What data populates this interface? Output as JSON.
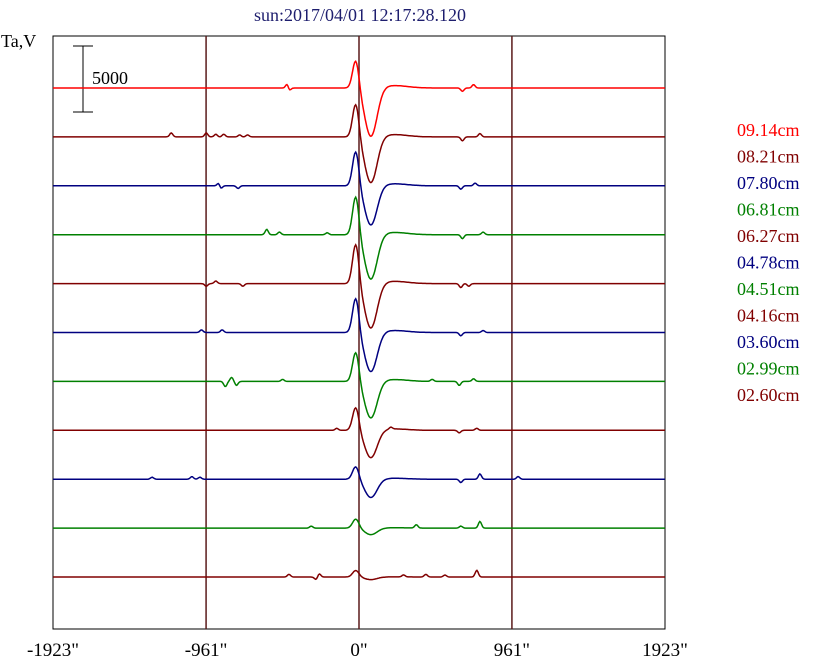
{
  "chart_data": {
    "type": "line",
    "title": "sun:2017/04/01 12:17:28.120",
    "ylabel": "Ta,V",
    "scale_bar_label": "5000",
    "x_ticks": [
      "-1923\"",
      "-961\"",
      "0\"",
      "961\"",
      "1923\""
    ],
    "x_tick_values": [
      -1923,
      -961,
      0,
      961,
      1923
    ],
    "xlim": [
      -1923,
      1923
    ],
    "vertical_grid_at": [
      -961,
      0,
      961
    ],
    "series": [
      {
        "name": "09.14cm",
        "color": "#ff0000",
        "pos_amp": 2200,
        "neg_amp": 3700,
        "features": [
          [
            -450,
            400
          ],
          [
            -440,
            -300
          ],
          [
            650,
            -250
          ],
          [
            720,
            250
          ]
        ]
      },
      {
        "name": "08.21cm",
        "color": "#800000",
        "pos_amp": 2600,
        "neg_amp": 3500,
        "features": [
          [
            -1180,
            300
          ],
          [
            -960,
            300
          ],
          [
            -900,
            200
          ],
          [
            -850,
            200
          ],
          [
            -750,
            150
          ],
          [
            -700,
            150
          ],
          [
            650,
            -300
          ],
          [
            760,
            250
          ]
        ]
      },
      {
        "name": "07.80cm",
        "color": "#000080",
        "pos_amp": 2700,
        "neg_amp": 3000,
        "features": [
          [
            -870,
            -300
          ],
          [
            -880,
            300
          ],
          [
            -760,
            -200
          ],
          [
            640,
            -250
          ],
          [
            730,
            200
          ]
        ]
      },
      {
        "name": "06.81cm",
        "color": "#008000",
        "pos_amp": 3000,
        "neg_amp": 3400,
        "features": [
          [
            -580,
            400
          ],
          [
            -500,
            200
          ],
          [
            -200,
            150
          ],
          [
            650,
            -300
          ],
          [
            780,
            200
          ]
        ]
      },
      {
        "name": "06.27cm",
        "color": "#800000",
        "pos_amp": 3100,
        "neg_amp": 3400,
        "features": [
          [
            -960,
            -200
          ],
          [
            -900,
            200
          ],
          [
            -730,
            -200
          ],
          [
            640,
            -300
          ],
          [
            690,
            -200
          ]
        ]
      },
      {
        "name": "04.78cm",
        "color": "#000080",
        "pos_amp": 2700,
        "neg_amp": 3000,
        "features": [
          [
            -990,
            200
          ],
          [
            -860,
            200
          ],
          [
            640,
            -250
          ],
          [
            780,
            150
          ]
        ]
      },
      {
        "name": "04.51cm",
        "color": "#008000",
        "pos_amp": 2300,
        "neg_amp": 2800,
        "features": [
          [
            -840,
            -400
          ],
          [
            -800,
            300
          ],
          [
            -770,
            -300
          ],
          [
            -480,
            150
          ],
          [
            460,
            150
          ],
          [
            630,
            -300
          ],
          [
            720,
            200
          ]
        ]
      },
      {
        "name": "04.16cm",
        "color": "#800000",
        "pos_amp": 1800,
        "neg_amp": 2100,
        "features": [
          [
            -140,
            150
          ],
          [
            200,
            150
          ],
          [
            630,
            -200
          ],
          [
            740,
            150
          ]
        ]
      },
      {
        "name": "03.60cm",
        "color": "#000080",
        "pos_amp": 1000,
        "neg_amp": 1400,
        "features": [
          [
            -1300,
            150
          ],
          [
            -1050,
            200
          ],
          [
            -1000,
            150
          ],
          [
            640,
            -250
          ],
          [
            760,
            400
          ],
          [
            1000,
            200
          ]
        ]
      },
      {
        "name": "02.99cm",
        "color": "#008000",
        "pos_amp": 700,
        "neg_amp": 500,
        "features": [
          [
            -300,
            150
          ],
          [
            360,
            250
          ],
          [
            640,
            150
          ],
          [
            760,
            500
          ]
        ]
      },
      {
        "name": "02.60cm",
        "color": "#800000",
        "pos_amp": 500,
        "neg_amp": 200,
        "features": [
          [
            -440,
            200
          ],
          [
            -250,
            250
          ],
          [
            -270,
            -200
          ],
          [
            280,
            150
          ],
          [
            420,
            200
          ],
          [
            540,
            150
          ],
          [
            740,
            500
          ]
        ]
      }
    ]
  }
}
